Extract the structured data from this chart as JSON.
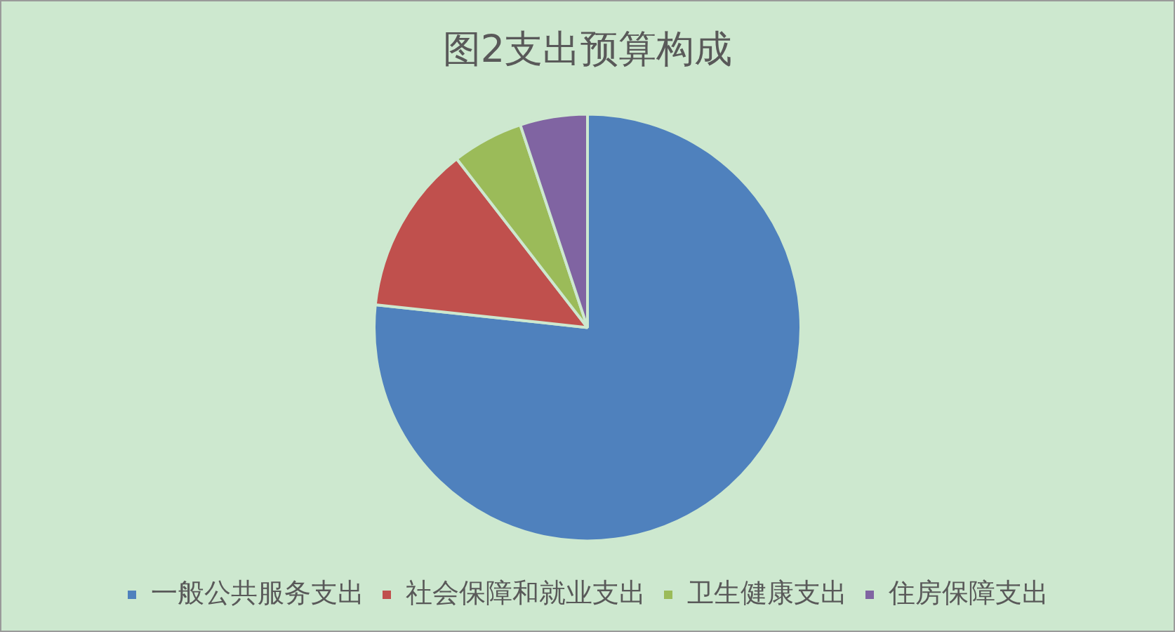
{
  "chart_data": {
    "type": "pie",
    "title": "图2支出预算构成",
    "categories": [
      "一般公共服务支出",
      "社会保障和就业支出",
      "卫生健康支出",
      "住房保障支出"
    ],
    "values": [
      76.7,
      12.8,
      5.4,
      5.1
    ],
    "colors": [
      "#4f81bd",
      "#c0504d",
      "#9bbb59",
      "#8064a2"
    ],
    "legend": "bottom"
  }
}
